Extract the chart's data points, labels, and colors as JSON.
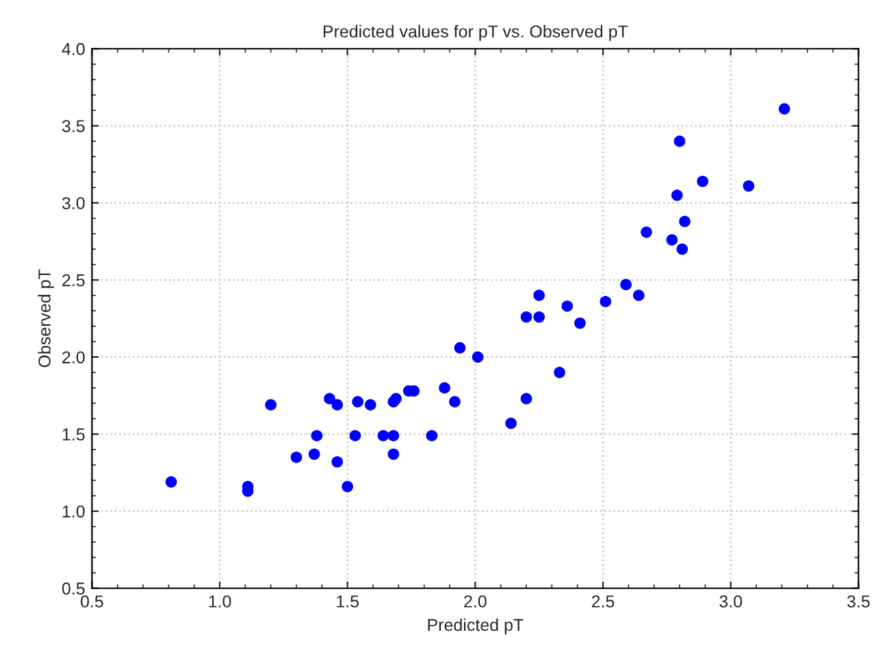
{
  "chart_data": {
    "type": "scatter",
    "title": "Predicted values for pT vs. Observed pT",
    "xlabel": "Predicted pT",
    "ylabel": "Observed pT",
    "series": [
      {
        "color": "#0000ff",
        "x": [
          0.81,
          1.11,
          1.11,
          1.2,
          1.3,
          1.37,
          1.38,
          1.43,
          1.46,
          1.46,
          1.5,
          1.53,
          1.54,
          1.59,
          1.64,
          1.68,
          1.68,
          1.68,
          1.69,
          1.74,
          1.76,
          1.83,
          1.88,
          1.92,
          1.94,
          2.01,
          2.14,
          2.2,
          2.2,
          2.25,
          2.25,
          2.33,
          2.36,
          2.41,
          2.51,
          2.59,
          2.64,
          2.67,
          2.77,
          2.79,
          2.8,
          2.81,
          2.82,
          2.89,
          3.07,
          3.21
        ],
        "values": [
          1.19,
          1.16,
          1.13,
          1.69,
          1.35,
          1.37,
          1.49,
          1.73,
          1.69,
          1.32,
          1.16,
          1.49,
          1.71,
          1.69,
          1.49,
          1.49,
          1.37,
          1.71,
          1.73,
          1.78,
          1.78,
          1.49,
          1.8,
          1.71,
          2.06,
          2.0,
          1.57,
          1.73,
          2.26,
          2.26,
          2.4,
          1.9,
          2.33,
          2.22,
          2.36,
          2.47,
          2.4,
          2.81,
          2.76,
          3.05,
          3.4,
          2.7,
          2.88,
          3.14,
          3.11,
          3.61
        ]
      }
    ],
    "xlim": [
      0.5,
      3.5
    ],
    "ylim": [
      0.5,
      4.0
    ],
    "xticks": [
      0.5,
      {
        "value": 1,
        "label": "1.0"
      },
      1.5,
      {
        "value": 2,
        "label": "2.0"
      },
      2.5,
      {
        "value": 3,
        "label": "3.0"
      },
      3.5
    ],
    "yticks": [
      0.5,
      {
        "value": 1,
        "label": "1.0"
      },
      1.5,
      {
        "value": 2,
        "label": "2.0"
      },
      2.5,
      {
        "value": 3,
        "label": "3.0"
      },
      3.5,
      {
        "value": 4,
        "label": "4.0"
      }
    ],
    "grid": true,
    "marker": "circle",
    "legend": false
  }
}
